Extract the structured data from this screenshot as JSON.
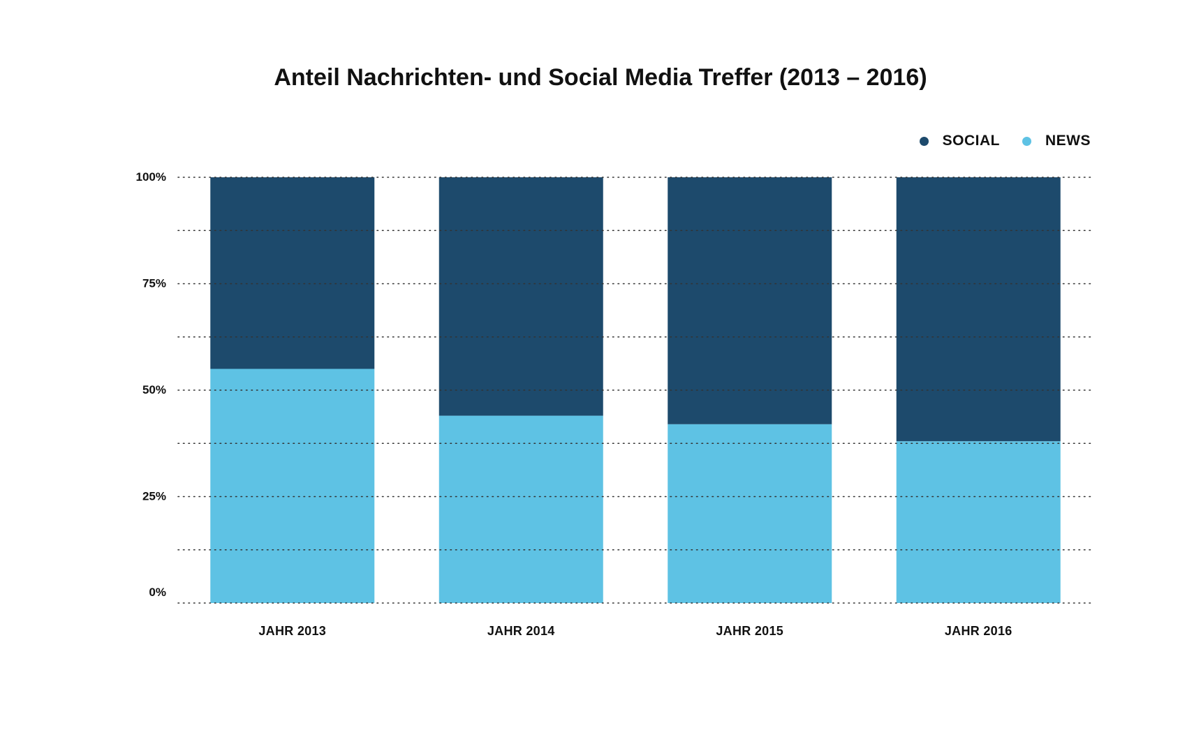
{
  "chart_data": {
    "type": "bar",
    "stacked": true,
    "title": "Anteil Nachrichten- und Social Media Treffer (2013 – 2016)",
    "categories": [
      "JAHR 2013",
      "JAHR 2014",
      "JAHR 2015",
      "JAHR 2016"
    ],
    "series": [
      {
        "name": "NEWS",
        "values": [
          55,
          44,
          42,
          38
        ],
        "color": "#5ec2e4"
      },
      {
        "name": "SOCIAL",
        "values": [
          45,
          56,
          58,
          62
        ],
        "color": "#1d4a6c"
      }
    ],
    "ylim": [
      0,
      100
    ],
    "yticks": [
      0,
      25,
      50,
      75,
      100
    ],
    "ytick_labels": [
      "0%",
      "25%",
      "50%",
      "75%",
      "100%"
    ],
    "grid": "dotted",
    "legend": {
      "position": "top-right",
      "items": [
        {
          "label": "SOCIAL",
          "color": "#1d4a6c"
        },
        {
          "label": "NEWS",
          "color": "#5ec2e4"
        }
      ]
    }
  }
}
